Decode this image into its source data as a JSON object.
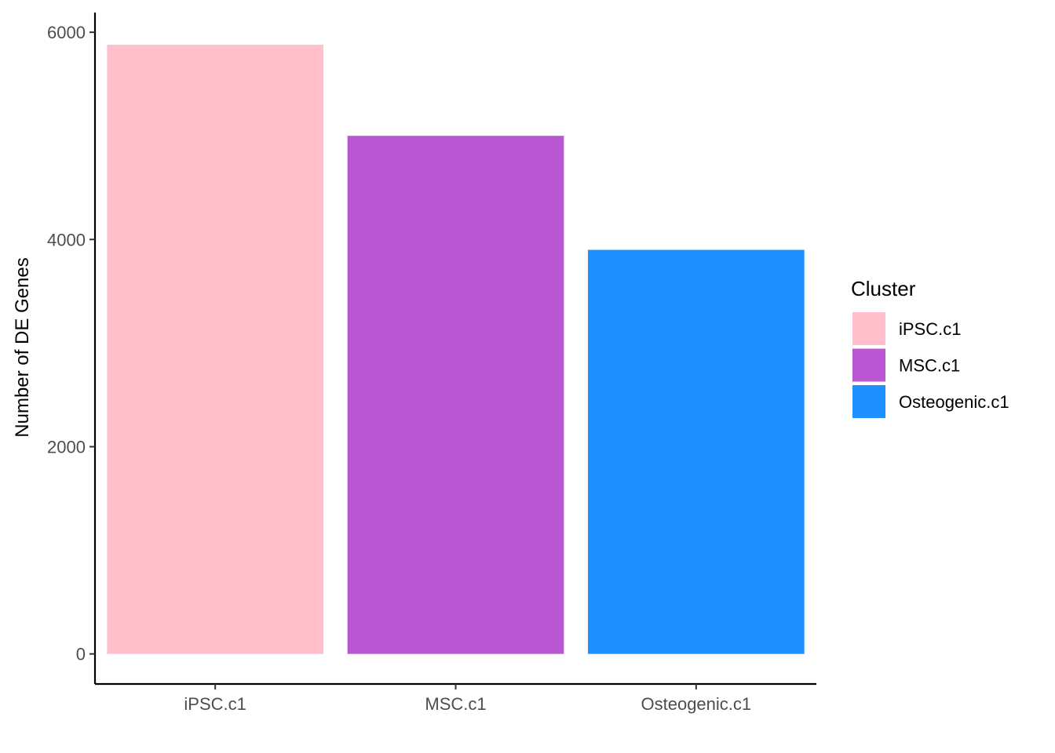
{
  "chart_data": {
    "type": "bar",
    "categories": [
      "iPSC.c1",
      "MSC.c1",
      "Osteogenic.c1"
    ],
    "values": [
      5880,
      5000,
      3900
    ],
    "colors": [
      "#FFC0CB",
      "#BA55D3",
      "#1E90FF"
    ],
    "title": "",
    "xlabel": "",
    "ylabel": "Number of DE Genes",
    "ylim": [
      -290,
      6190
    ],
    "yticks": [
      0,
      2000,
      4000,
      6000
    ],
    "grid": false,
    "legend": {
      "title": "Cluster",
      "placement": "right",
      "entries": [
        "iPSC.c1",
        "MSC.c1",
        "Osteogenic.c1"
      ]
    }
  }
}
